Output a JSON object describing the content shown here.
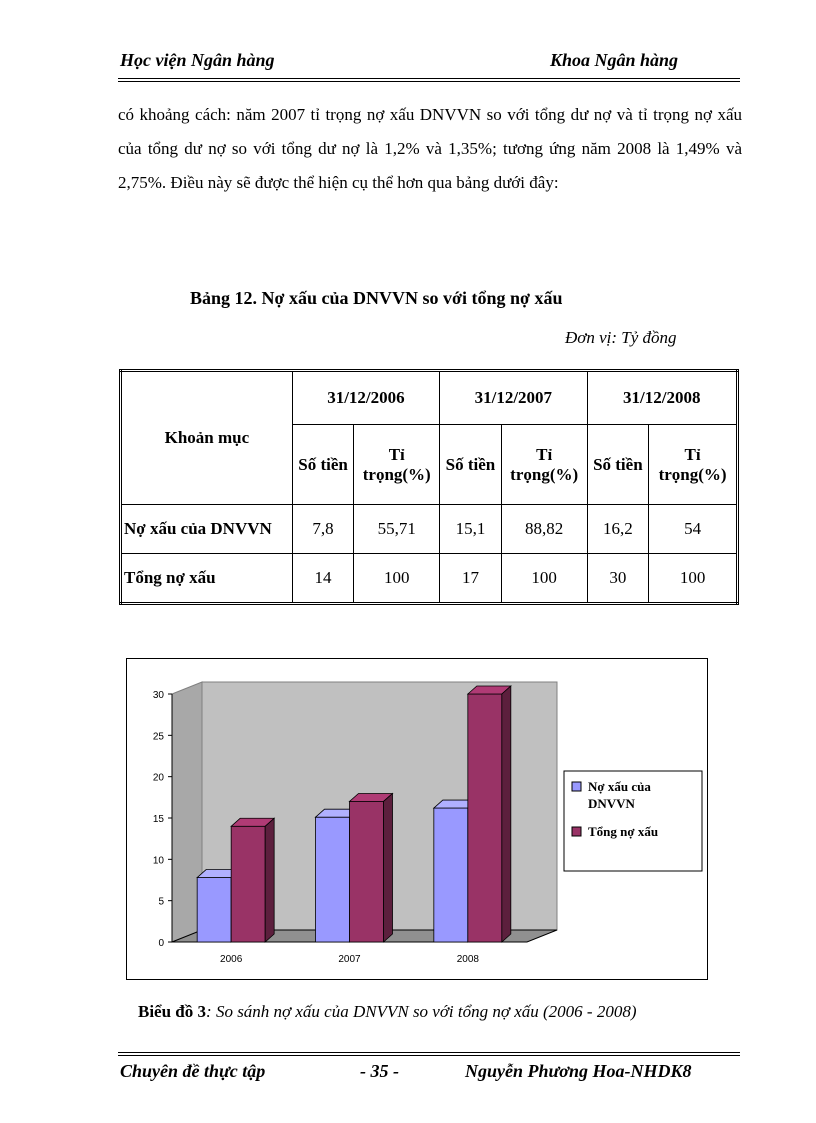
{
  "header": {
    "left": "Học viện Ngân hàng",
    "right": "Khoa Ngân hàng"
  },
  "paragraph": "có khoảng cách: năm 2007 tỉ trọng nợ xấu DNVVN  so với tổng dư nợ và tỉ trọng nợ xấu của tổng dư nợ so với tổng dư nợ  là 1,2% và 1,35%; tương ứng năm 2008 là 1,49% và 2,75%. Điều này sẽ được thể hiện  cụ thể hơn qua bảng dưới đây:",
  "table": {
    "title": "Bảng 12. Nợ xấu của DNVVN so với tổng nợ xấu",
    "unit": "Đơn vị: Tỷ đồng",
    "col_header": "Khoản mục",
    "years": [
      "31/12/2006",
      "31/12/2007",
      "31/12/2008"
    ],
    "sub_amount": "Số tiền",
    "sub_share_1": "Tỉ",
    "sub_share_2": "trọng(%)",
    "rows": [
      {
        "label": "Nợ xấu của DNVVN",
        "values": [
          "7,8",
          "55,71",
          "15,1",
          "88,82",
          "16,2",
          "54"
        ]
      },
      {
        "label": "Tổng nợ xấu",
        "values": [
          "14",
          "100",
          "17",
          "100",
          "30",
          "100"
        ]
      }
    ]
  },
  "chart_data": {
    "type": "bar",
    "categories": [
      "2006",
      "2007",
      "2008"
    ],
    "series": [
      {
        "name": "Nợ xấu của DNVVN",
        "values": [
          7.8,
          15.1,
          16.2
        ],
        "color": "#9999ff"
      },
      {
        "name": "Tổng nợ xấu",
        "values": [
          14,
          17,
          30
        ],
        "color": "#993366"
      }
    ],
    "yticks": [
      "0",
      "5",
      "10",
      "15",
      "20",
      "25",
      "30"
    ],
    "ylim": [
      0,
      30
    ],
    "grid": false,
    "legend": "right",
    "three_d": true
  },
  "caption": {
    "bold": "Biểu đồ 3",
    "italic": ": So sánh nợ xấu của  DNVVN so với tổng nợ xấu (2006 - 2008)"
  },
  "footer": {
    "left": "Chuyên đề thực tập",
    "center": "- 35 -",
    "right": "Nguyễn Phương Hoa-NHDK8"
  }
}
